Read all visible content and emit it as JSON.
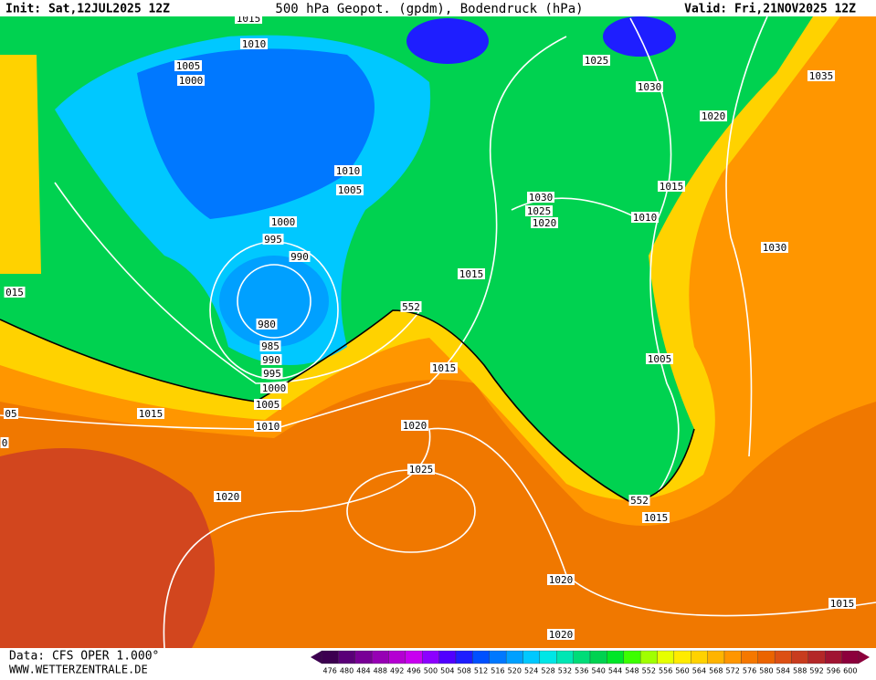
{
  "header": {
    "init": "Init: Sat,12JUL2025 12Z",
    "title": "500 hPa Geopot. (gpdm), Bodendruck (hPa)",
    "valid": "Valid: Fri,21NOV2025 12Z"
  },
  "isobar_labels": [
    "1015",
    "1010",
    "1005",
    "1000",
    "1025",
    "1030",
    "1020",
    "1035",
    "1010",
    "1005",
    "1030",
    "1025",
    "1020",
    "1015",
    "1010",
    "1030",
    "1000",
    "995",
    "990",
    "1015",
    "015",
    "552",
    "980",
    "985",
    "990",
    "995",
    "1000",
    "1005",
    "1010",
    "1015",
    "1005",
    "1015",
    "05",
    "1020",
    "0",
    "1025",
    "552",
    "1015",
    "1020",
    "1020",
    "1015",
    "1020"
  ],
  "footer": {
    "data": "Data: CFS OPER 1.000°",
    "site": "WWW.WETTERZENTRALE.DE"
  },
  "colorbar": {
    "values": [
      476,
      480,
      484,
      488,
      492,
      496,
      500,
      504,
      508,
      512,
      516,
      520,
      524,
      528,
      532,
      536,
      540,
      544,
      548,
      552,
      556,
      560,
      564,
      568,
      572,
      576,
      580,
      584,
      588,
      592,
      596,
      600
    ],
    "colors": [
      "#3c0050",
      "#5a0078",
      "#780096",
      "#9600b4",
      "#b400d2",
      "#c800f0",
      "#8c00ff",
      "#5000ff",
      "#1e1eff",
      "#0050ff",
      "#0078ff",
      "#00a0ff",
      "#00c8ff",
      "#00e6e6",
      "#00e6b4",
      "#00dc78",
      "#00d250",
      "#00e628",
      "#3cff00",
      "#a0ff00",
      "#e6ff00",
      "#ffeb00",
      "#ffd200",
      "#ffb400",
      "#ff9600",
      "#f57800",
      "#eb6400",
      "#dc5014",
      "#c83c1e",
      "#b42828",
      "#a01432",
      "#8c003c"
    ]
  }
}
